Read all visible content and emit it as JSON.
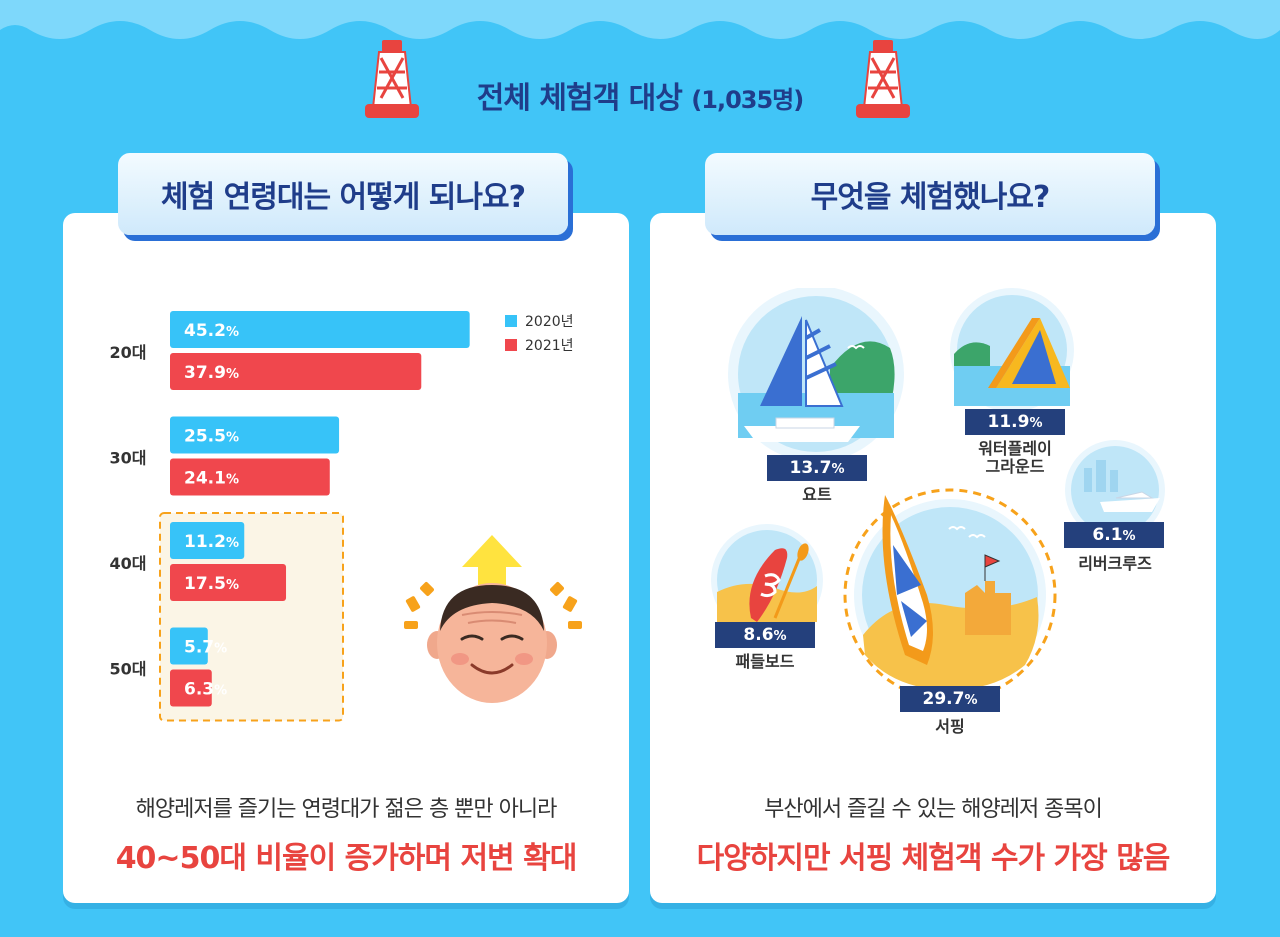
{
  "header": {
    "title": "전체 체험객 대상",
    "count": "(1,035명)"
  },
  "left_panel": {
    "tab_title": "체험 연령대는 어떻게 되나요?",
    "caption_line1": "해양레저를 즐기는 연령대가 젊은 층 뿐만 아니라",
    "caption_line2": "40~50대 비율이 증가하며 저변 확대"
  },
  "right_panel": {
    "tab_title": "무엇을 체험했나요?",
    "caption_line1": "부산에서 즐길 수 있는 해양레저 종목이",
    "caption_line2": "다양하지만 서핑 체험객 수가 가장 많음",
    "activities": [
      {
        "name": "요트",
        "value": "13.7",
        "unit": "%"
      },
      {
        "name": "워터플레이\n그라운드",
        "value": "11.9",
        "unit": "%"
      },
      {
        "name": "리버크루즈",
        "value": "6.1",
        "unit": "%"
      },
      {
        "name": "패들보드",
        "value": "8.6",
        "unit": "%"
      },
      {
        "name": "서핑",
        "value": "29.7",
        "unit": "%"
      }
    ]
  },
  "colors": {
    "series_2020": "#37c3f8",
    "series_2021": "#f0474d",
    "highlight_box": "#f7a21b",
    "label_bg": "#24407c"
  },
  "chart_data": [
    {
      "type": "bar",
      "orientation": "horizontal",
      "categories": [
        "20대",
        "30대",
        "40대",
        "50대"
      ],
      "series": [
        {
          "name": "2020년",
          "values": [
            45.2,
            25.5,
            11.2,
            5.7
          ]
        },
        {
          "name": "2021년",
          "values": [
            37.9,
            24.1,
            17.5,
            6.3
          ]
        }
      ],
      "value_unit": "%",
      "title": "",
      "xlabel": "",
      "ylabel": "",
      "xlim": [
        0,
        50
      ],
      "grid": false,
      "legend": "top-right",
      "highlighted_categories": [
        "40대",
        "50대"
      ]
    }
  ]
}
